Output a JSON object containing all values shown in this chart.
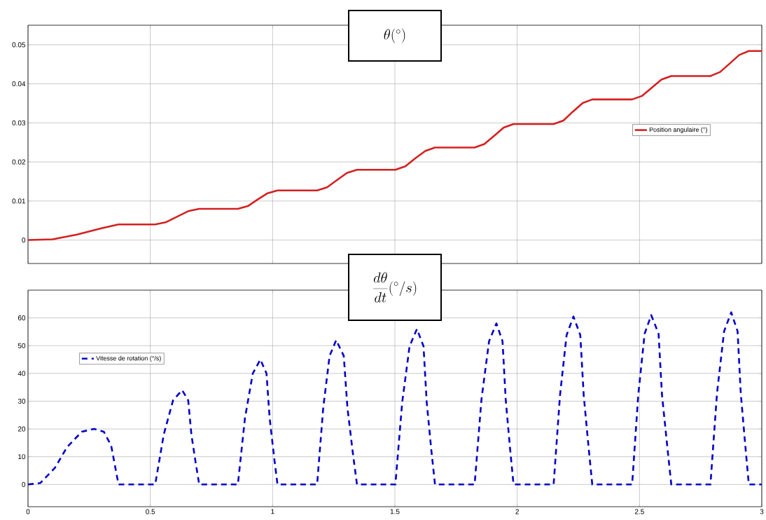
{
  "chart_data": [
    {
      "type": "line",
      "title": "\\theta(^{\\circ})",
      "xlim": [
        0,
        3
      ],
      "xticks": [
        0,
        0.5,
        1,
        1.5,
        2,
        2.5,
        3
      ],
      "ylim": [
        -0.006,
        0.055
      ],
      "yticks": [
        0,
        0.01,
        0.02,
        0.03,
        0.04,
        0.05
      ],
      "grid": true,
      "legend": "right",
      "tick_labels": "y",
      "line_style": "solid",
      "x": [
        0,
        0.1,
        0.2,
        0.3,
        0.37,
        0.52,
        0.565,
        0.61,
        0.655,
        0.7,
        0.858,
        0.899,
        0.939,
        0.98,
        1.02,
        1.182,
        1.223,
        1.264,
        1.304,
        1.345,
        1.502,
        1.543,
        1.583,
        1.624,
        1.664,
        1.826,
        1.866,
        1.906,
        1.945,
        1.985,
        2.149,
        2.189,
        2.228,
        2.268,
        2.307,
        2.47,
        2.51,
        2.55,
        2.59,
        2.63,
        2.79,
        2.829,
        2.869,
        2.908,
        2.947,
        3
      ],
      "series": [
        {
          "name": "Position angulaire (°)",
          "color": "#d42020",
          "values": [
            0,
            0.0002,
            0.0014,
            0.003,
            0.004,
            0.004,
            0.0046,
            0.006,
            0.0074,
            0.008,
            0.008,
            0.0087,
            0.0104,
            0.012,
            0.0127,
            0.0127,
            0.0135,
            0.0154,
            0.0172,
            0.018,
            0.018,
            0.0189,
            0.0209,
            0.0228,
            0.0237,
            0.0237,
            0.0246,
            0.0267,
            0.0288,
            0.0297,
            0.0297,
            0.0306,
            0.0329,
            0.0351,
            0.036,
            0.036,
            0.0369,
            0.039,
            0.0411,
            0.042,
            0.042,
            0.043,
            0.0452,
            0.0474,
            0.0484,
            0.0484
          ]
        }
      ]
    },
    {
      "type": "line",
      "title": "\\frac{d\\theta}{dt}(^{\\circ}/s)",
      "xlim": [
        0,
        3
      ],
      "xticks": [
        0,
        0.5,
        1,
        1.5,
        2,
        2.5,
        3
      ],
      "ylim": [
        -8,
        70
      ],
      "yticks": [
        0,
        10,
        20,
        30,
        40,
        50,
        60
      ],
      "grid": true,
      "legend": "top left",
      "line_style": "dashed",
      "x": [
        0,
        0.05,
        0.11,
        0.16,
        0.22,
        0.27,
        0.31,
        0.34,
        0.37,
        0.52,
        0.555,
        0.593,
        0.63,
        0.655,
        0.668,
        0.686,
        0.7,
        0.858,
        0.887,
        0.919,
        0.95,
        0.975,
        0.988,
        1.006,
        1.02,
        1.182,
        1.207,
        1.233,
        1.26,
        1.291,
        1.306,
        1.328,
        1.345,
        1.502,
        1.53,
        1.56,
        1.59,
        1.617,
        1.63,
        1.649,
        1.664,
        1.826,
        1.854,
        1.885,
        1.915,
        1.94,
        1.953,
        1.971,
        1.985,
        2.149,
        2.175,
        2.202,
        2.23,
        2.258,
        2.272,
        2.292,
        2.307,
        2.47,
        2.495,
        2.521,
        2.548,
        2.578,
        2.592,
        2.614,
        2.63,
        2.79,
        2.817,
        2.846,
        2.875,
        2.901,
        2.914,
        2.933,
        2.947,
        3
      ],
      "series": [
        {
          "name": "Vitesse de rotation (°/s)",
          "color": "#0000c8",
          "values": [
            0,
            0.5,
            6,
            13.5,
            19,
            20,
            19,
            14,
            0,
            0,
            18,
            30.3,
            34,
            30.3,
            18,
            7.5,
            0,
            0,
            23.9,
            40,
            45,
            40,
            23.9,
            9.9,
            0,
            0,
            27.6,
            46.3,
            52,
            46.3,
            27.6,
            11.4,
            0,
            0,
            29.7,
            49.8,
            56,
            49.8,
            29.7,
            12.3,
            0,
            0,
            30.7,
            51.6,
            58,
            51.6,
            30.7,
            12.8,
            0,
            0,
            32.1,
            53.8,
            60.5,
            53.8,
            32.1,
            13.3,
            0,
            0,
            32.3,
            54.3,
            61,
            54.3,
            32.3,
            13.4,
            0,
            0,
            32.9,
            55.2,
            62,
            55.2,
            32.9,
            13.6,
            0,
            0
          ]
        }
      ]
    }
  ]
}
